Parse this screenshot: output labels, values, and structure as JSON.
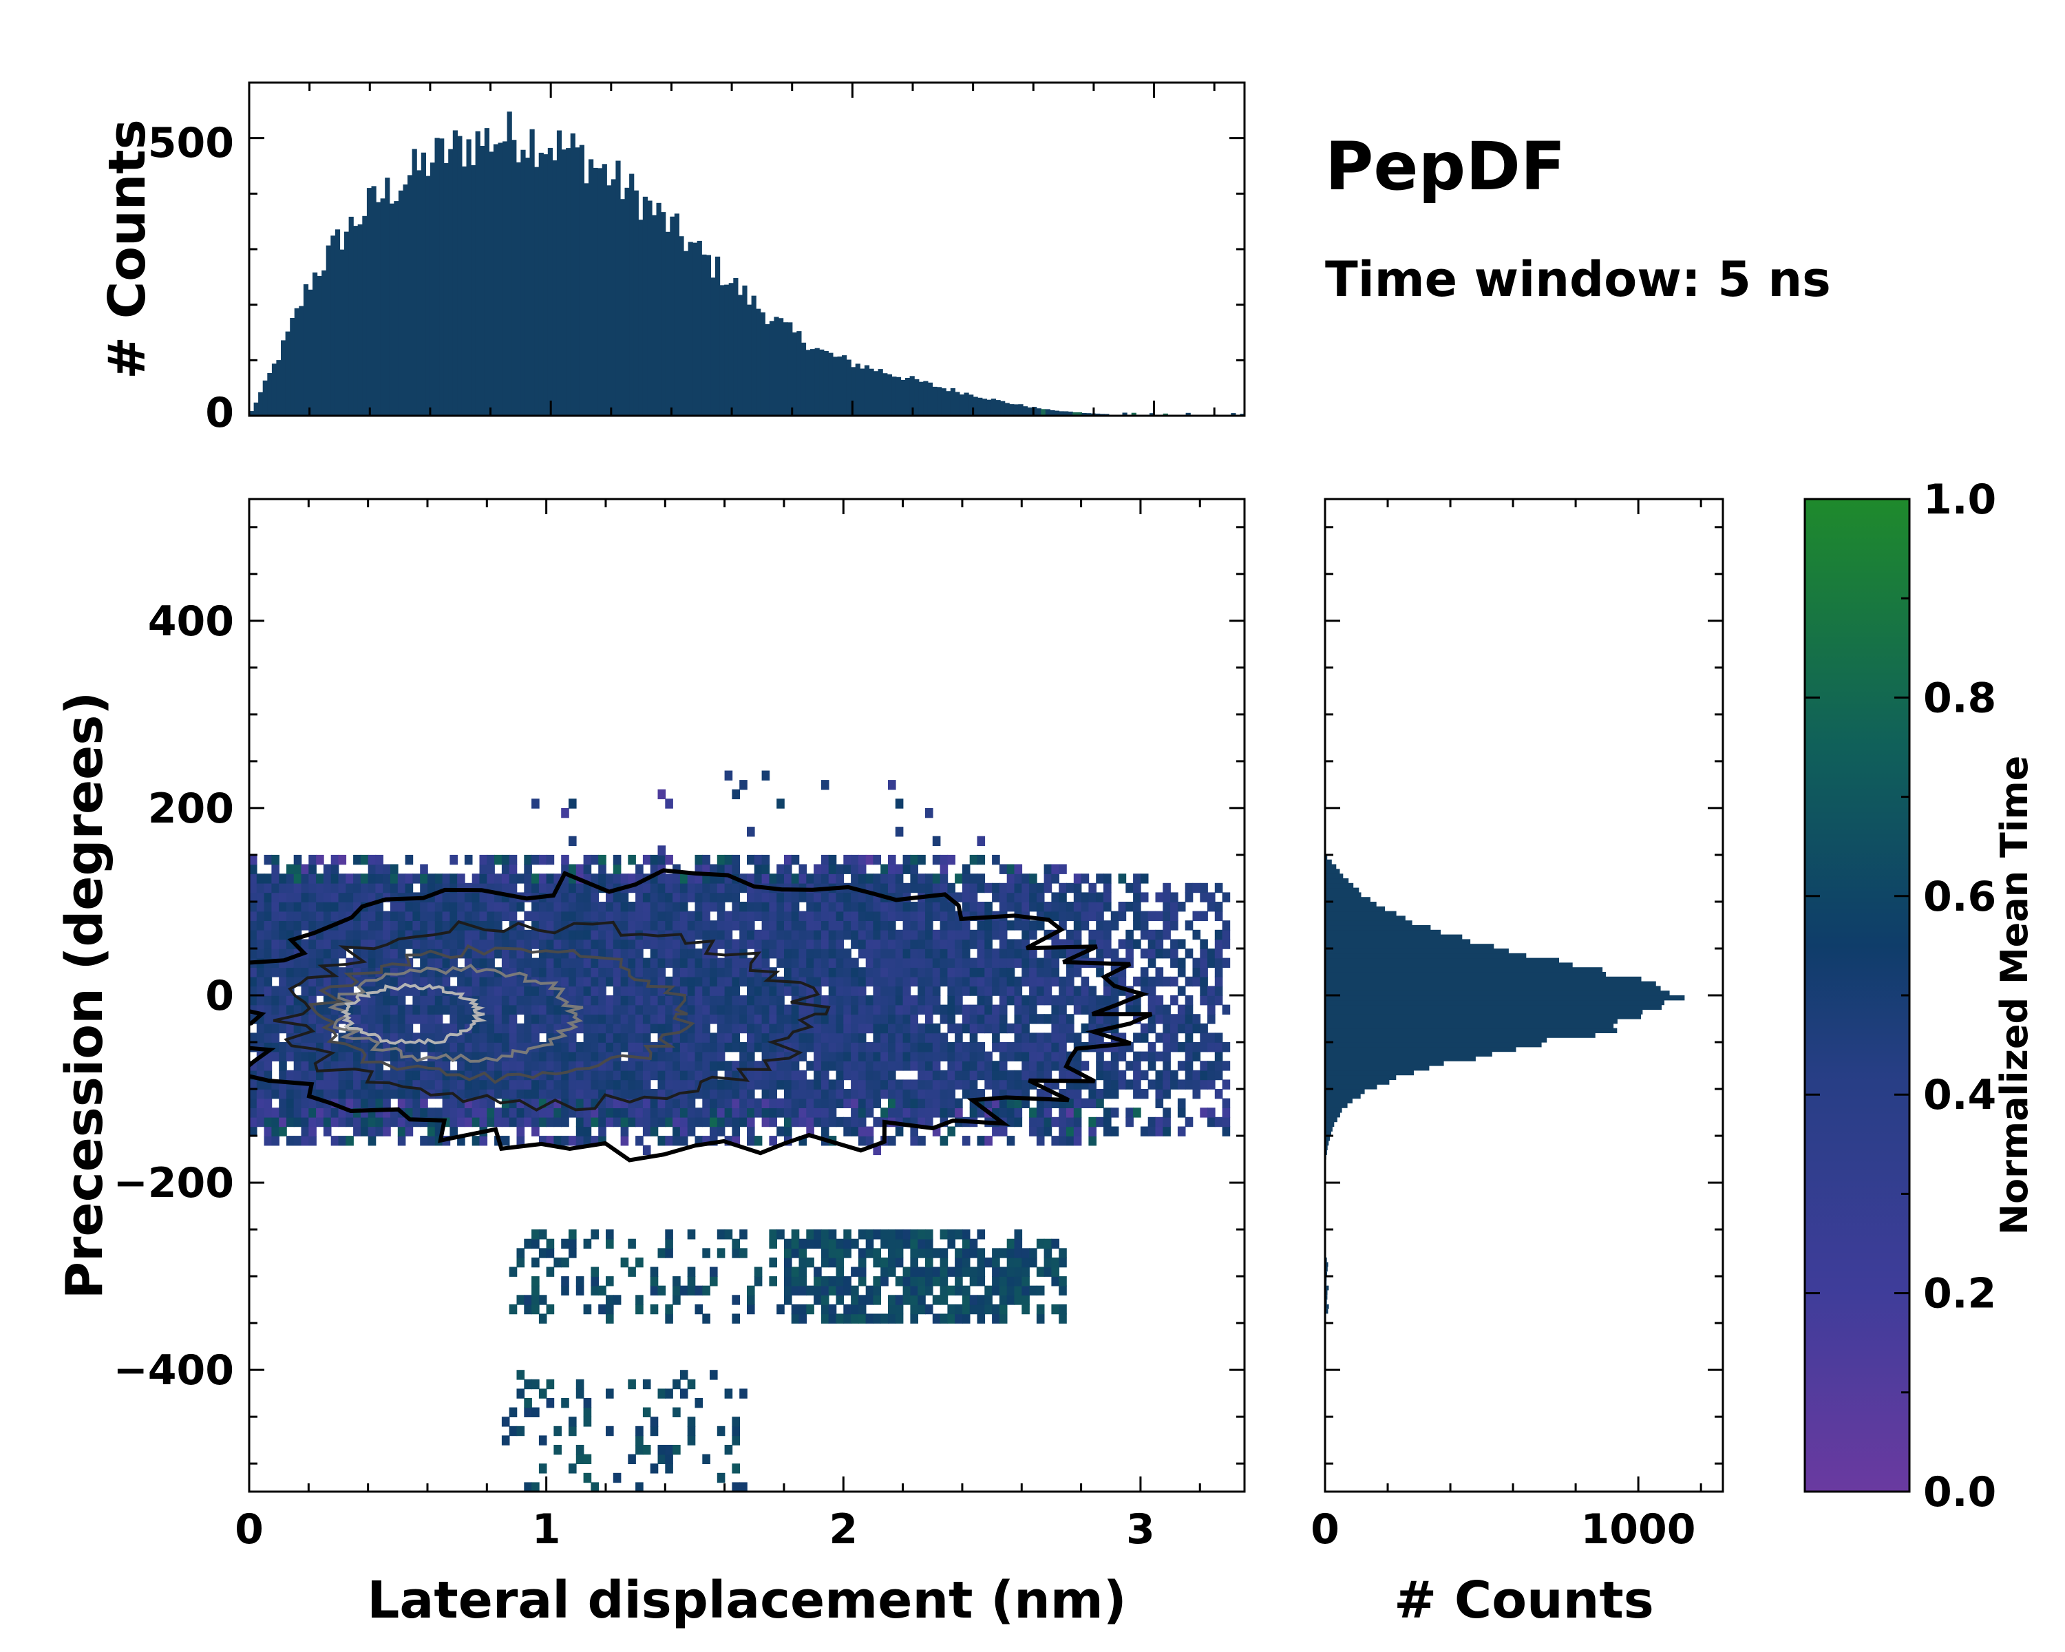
{
  "title": "PepDF",
  "subtitle": "Time window: 5 ns",
  "chart_data": [
    {
      "id": "top_histogram",
      "type": "bar",
      "ylabel": "# Counts",
      "xlim": [
        0,
        3.3
      ],
      "ylim": [
        0,
        600
      ],
      "yticks": [
        0,
        500
      ],
      "bin_width": 0.015,
      "envelope_x": [
        0.0,
        0.1,
        0.2,
        0.3,
        0.4,
        0.5,
        0.6,
        0.7,
        0.8,
        0.9,
        1.0,
        1.1,
        1.2,
        1.3,
        1.4,
        1.5,
        1.6,
        1.7,
        1.8,
        1.9,
        2.0,
        2.1,
        2.2,
        2.3,
        2.4,
        2.5,
        2.6,
        2.7,
        2.8,
        2.9,
        3.0,
        3.1,
        3.2,
        3.3
      ],
      "envelope_counts": [
        0,
        110,
        240,
        320,
        380,
        420,
        460,
        485,
        500,
        505,
        490,
        470,
        430,
        390,
        340,
        290,
        240,
        190,
        150,
        115,
        95,
        80,
        65,
        50,
        38,
        25,
        15,
        8,
        4,
        2,
        1,
        0,
        0,
        0
      ],
      "color": "#123f63"
    },
    {
      "id": "main_2d_histogram",
      "type": "heatmap",
      "xlabel": "Lateral displacement (nm)",
      "ylabel": "Precession (degrees)",
      "xlim": [
        0,
        3.35
      ],
      "ylim": [
        -530,
        530
      ],
      "xticks": [
        0,
        1,
        2,
        3
      ],
      "yticks": [
        -400,
        -200,
        0,
        200,
        400
      ],
      "xticklabels": [
        "0",
        "1",
        "2",
        "3"
      ],
      "yticklabels": [
        "−400",
        "−200",
        "0",
        "200",
        "400"
      ],
      "color_by": "Normalized Mean Time",
      "main_cluster": {
        "x_range": [
          0,
          3.3
        ],
        "y_range": [
          -160,
          150
        ],
        "density_peak": [
          0.55,
          -20
        ]
      },
      "secondary_cluster": {
        "x_range": [
          0.85,
          2.75
        ],
        "y_range": [
          -350,
          -250
        ]
      },
      "tertiary_cluster": {
        "x_range": [
          0.85,
          1.7
        ],
        "y_range": [
          -530,
          -400
        ]
      },
      "contour_levels": [
        1,
        2,
        3,
        4,
        5
      ]
    },
    {
      "id": "right_histogram",
      "type": "bar",
      "orientation": "horizontal",
      "xlabel": "# Counts",
      "xlim": [
        0,
        1270
      ],
      "xticks": [
        0,
        1000
      ],
      "ylim": [
        -530,
        530
      ],
      "envelope_y": [
        150,
        140,
        120,
        100,
        80,
        60,
        40,
        20,
        0,
        -20,
        -40,
        -60,
        -80,
        -100,
        -120,
        -140,
        -160,
        -180
      ],
      "envelope_counts": [
        0,
        30,
        80,
        150,
        260,
        450,
        720,
        980,
        1130,
        1080,
        870,
        560,
        300,
        140,
        60,
        25,
        10,
        0
      ],
      "color": "#123f63"
    },
    {
      "id": "colorbar",
      "type": "colorbar",
      "label": "Normalized Mean Time",
      "range": [
        0.0,
        1.0
      ],
      "ticks": [
        "0.0",
        "0.2",
        "0.4",
        "0.6",
        "0.8",
        "1.0"
      ],
      "colors": [
        "#6a3aa0",
        "#3f3d9a",
        "#273e85",
        "#0f3d6a",
        "#10605a",
        "#1f8a2c"
      ]
    }
  ]
}
